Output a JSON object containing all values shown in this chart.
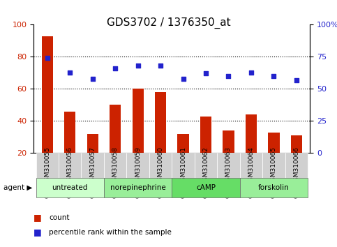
{
  "title": "GDS3702 / 1376350_at",
  "samples": [
    "GSM310055",
    "GSM310056",
    "GSM310057",
    "GSM310058",
    "GSM310059",
    "GSM310060",
    "GSM310061",
    "GSM310062",
    "GSM310063",
    "GSM310064",
    "GSM310065",
    "GSM310066"
  ],
  "counts": [
    93,
    46,
    32,
    50,
    60,
    58,
    32,
    43,
    34,
    44,
    33,
    31
  ],
  "percentiles": [
    74,
    63,
    58,
    66,
    68,
    68,
    58,
    62,
    60,
    63,
    60,
    57
  ],
  "bar_color": "#cc2200",
  "dot_color": "#2222cc",
  "ylim_left": [
    20,
    100
  ],
  "ylim_right": [
    0,
    100
  ],
  "yticks_left": [
    20,
    40,
    60,
    80,
    100
  ],
  "yticks_right": [
    0,
    25,
    50,
    75,
    100
  ],
  "ytick_labels_right": [
    "0",
    "25",
    "50",
    "75",
    "100%"
  ],
  "grid_lines": [
    40,
    60,
    80
  ],
  "agents": [
    {
      "label": "untreated",
      "start": 0,
      "end": 3,
      "color": "#ccffcc"
    },
    {
      "label": "norepinephrine",
      "start": 3,
      "end": 6,
      "color": "#99ee99"
    },
    {
      "label": "cAMP",
      "start": 6,
      "end": 9,
      "color": "#66dd66"
    },
    {
      "label": "forskolin",
      "start": 9,
      "end": 12,
      "color": "#99ee99"
    }
  ],
  "agent_row_label": "agent",
  "legend_count_label": "count",
  "legend_percentile_label": "percentile rank within the sample",
  "title_fontsize": 11,
  "axis_fontsize": 8,
  "tick_fontsize": 8
}
